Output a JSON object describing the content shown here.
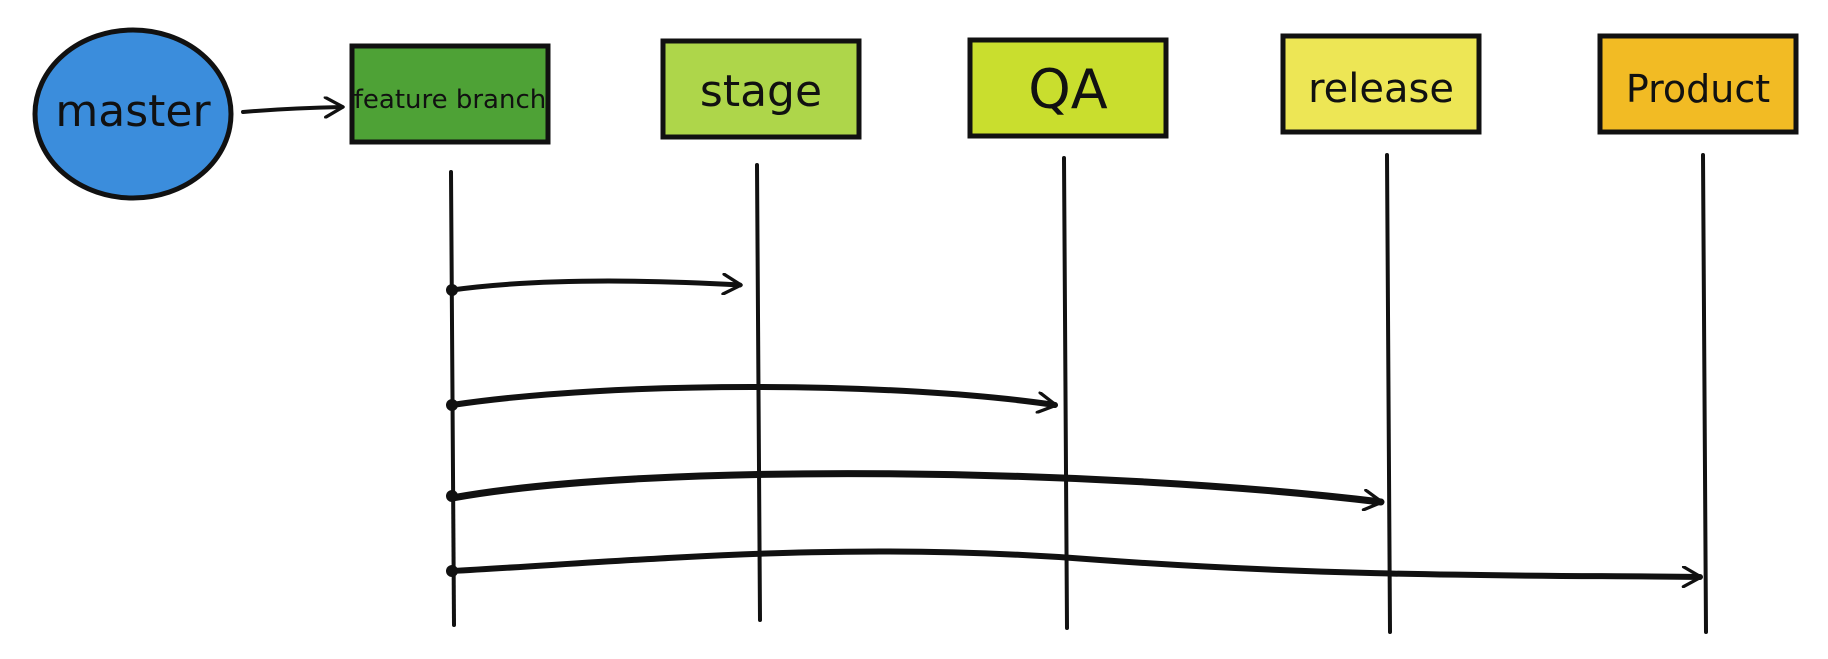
{
  "diagram": {
    "source": {
      "id": "master",
      "label": "master",
      "color": "#3b8ddc"
    },
    "branches": [
      {
        "id": "feature-branch",
        "label": "feature branch",
        "color": "#4ea236"
      },
      {
        "id": "stage",
        "label": "stage",
        "color": "#aed64a"
      },
      {
        "id": "qa",
        "label": "QA",
        "color": "#c9de2e"
      },
      {
        "id": "release",
        "label": "release",
        "color": "#ede655"
      },
      {
        "id": "product",
        "label": "Product",
        "color": "#f2bb24"
      }
    ],
    "edges": [
      {
        "from": "master",
        "to": "feature-branch"
      },
      {
        "from": "feature-branch",
        "to": "stage"
      },
      {
        "from": "feature-branch",
        "to": "qa"
      },
      {
        "from": "feature-branch",
        "to": "release"
      },
      {
        "from": "feature-branch",
        "to": "product"
      }
    ],
    "colors": {
      "line": "#111111",
      "background": "#ffffff"
    }
  }
}
